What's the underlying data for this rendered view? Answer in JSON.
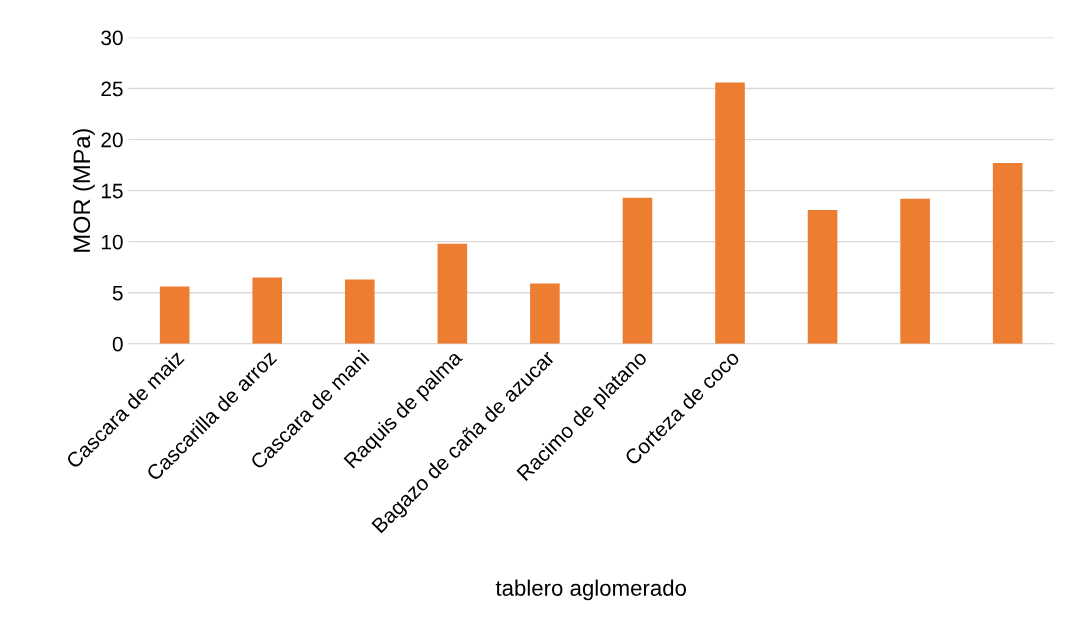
{
  "chart_data": {
    "type": "bar",
    "xlabel": "tablero aglomerado",
    "ylabel": "MOR (MPa)",
    "categories": [
      "Cascara de maiz",
      "Cascarilla de arroz",
      "Cascara de mani",
      "Raquis de palma",
      "Bagazo de caña de azucar",
      "Racimo de platano",
      "Corteza de coco",
      null,
      null,
      null
    ],
    "values": [
      5.6,
      6.5,
      6.3,
      9.8,
      5.9,
      14.3,
      25.6,
      13.1,
      14.2,
      17.7
    ],
    "color": "#ed7d31",
    "ylim": [
      0,
      30
    ],
    "yticks": [
      0,
      5,
      10,
      15,
      20,
      25,
      30
    ],
    "grid": "y"
  }
}
